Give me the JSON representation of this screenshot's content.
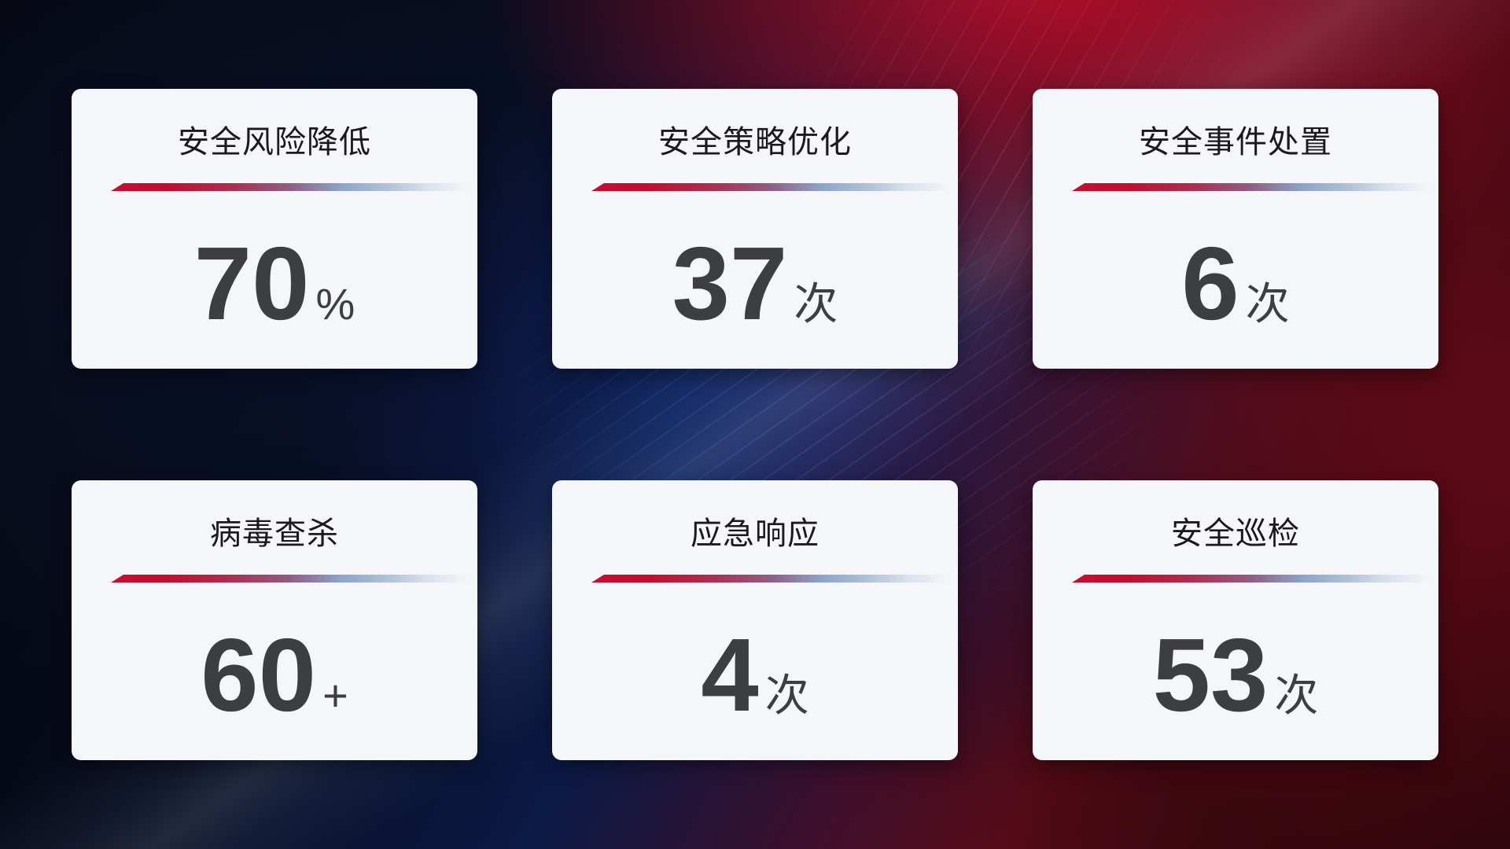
{
  "cards": [
    {
      "title": "安全风险降低",
      "value": "70",
      "unit": "%"
    },
    {
      "title": "安全策略优化",
      "value": "37",
      "unit": "次"
    },
    {
      "title": "安全事件处置",
      "value": "6",
      "unit": "次"
    },
    {
      "title": "病毒查杀",
      "value": "60",
      "unit": "+"
    },
    {
      "title": "应急响应",
      "value": "4",
      "unit": "次"
    },
    {
      "title": "安全巡检",
      "value": "53",
      "unit": "次"
    }
  ],
  "colors": {
    "card_background": "#f5f6f9",
    "title_text": "#1a1a1c",
    "value_text": "#3d3e40",
    "divider_red": "#c40e2e",
    "divider_blue": "#8da3c8",
    "background_navy": "#0b1a45",
    "background_blue": "#153c9b",
    "background_red_bright": "#a30d22",
    "background_red_dark": "#4d0912"
  }
}
